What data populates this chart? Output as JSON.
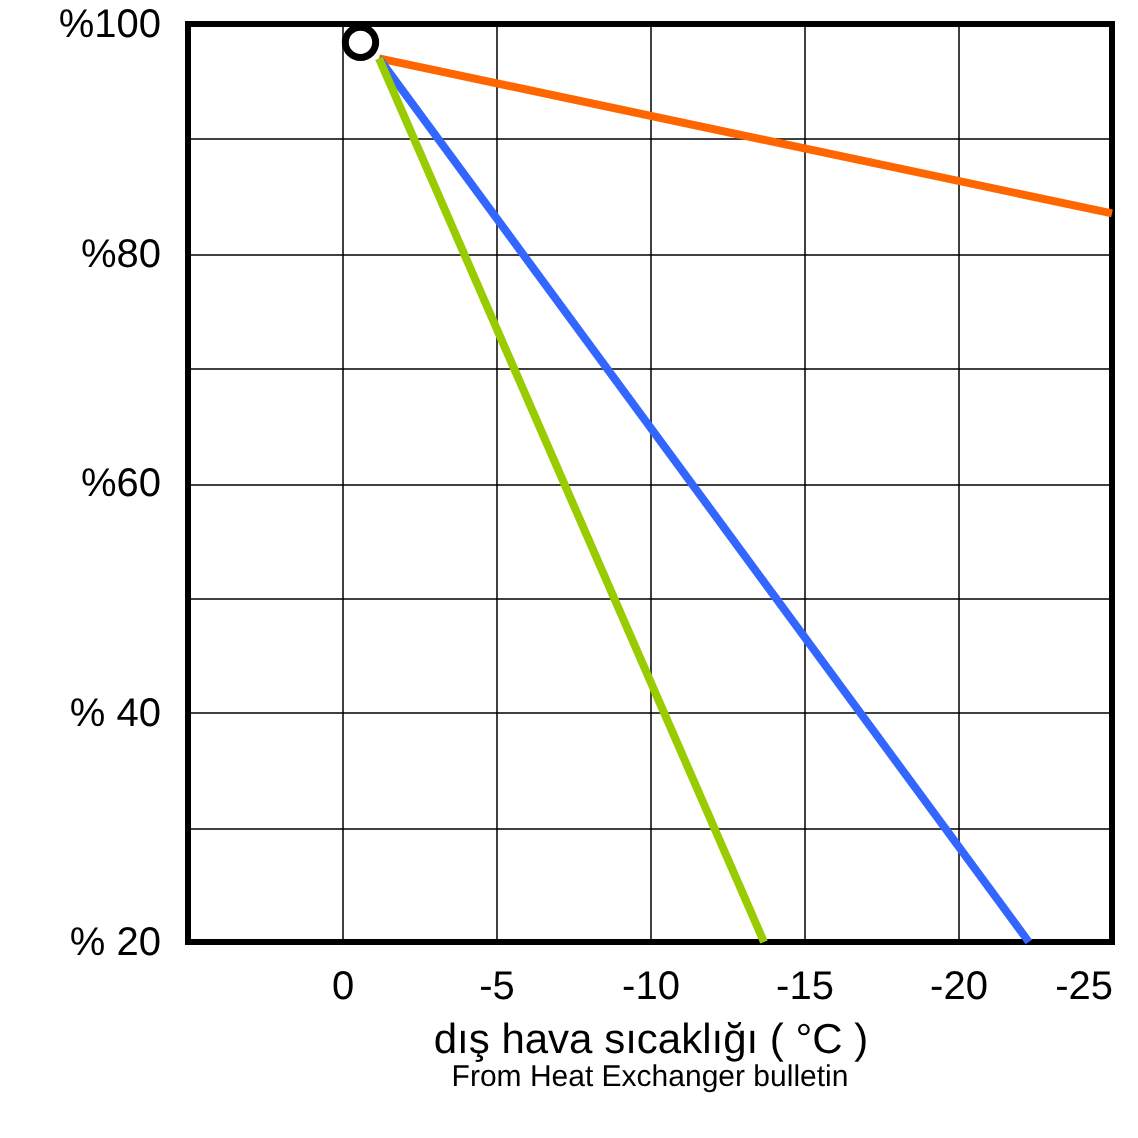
{
  "chart_data": {
    "type": "line",
    "xlabel": "dış hava sıcaklığı ( °C )",
    "annotations": [
      "From Heat Exchanger bulletin"
    ],
    "xlim": [
      5,
      -25
    ],
    "xticks": [
      0,
      -5,
      -10,
      -15,
      -20,
      -25
    ],
    "ylim": [
      20,
      100
    ],
    "yticks": [
      {
        "value": 20,
        "label": "% 20"
      },
      {
        "value": 30,
        "label": null
      },
      {
        "value": 40,
        "label": "% 40"
      },
      {
        "value": 50,
        "label": null
      },
      {
        "value": 60,
        "label": "%60"
      },
      {
        "value": 70,
        "label": null
      },
      {
        "value": 80,
        "label": "%80"
      },
      {
        "value": 90,
        "label": null
      },
      {
        "value": 100,
        "label": "%100"
      }
    ],
    "grid": true,
    "series": [
      {
        "color": "#ff6600",
        "x": [
          -1.2,
          -25
        ],
        "values": [
          97,
          83.5
        ]
      },
      {
        "color": "#3366ff",
        "x": [
          -1.2,
          -22.3
        ],
        "values": [
          97,
          20
        ]
      },
      {
        "color": "#99cc00",
        "x": [
          -1.2,
          -13.7
        ],
        "values": [
          97,
          20
        ]
      },
      {
        "type": "scatter",
        "color": "#000000",
        "marker": "circle",
        "x": [
          -0.6
        ],
        "values": [
          98.4
        ]
      }
    ]
  }
}
